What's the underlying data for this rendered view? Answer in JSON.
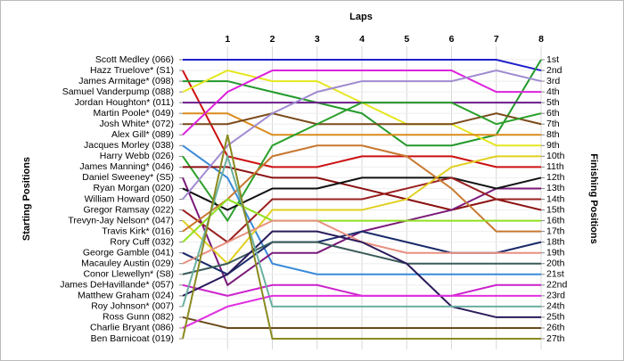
{
  "chart_data": {
    "type": "line",
    "title": "Laps",
    "y_label_left": "Starting Positions",
    "y_label_right": "Finishing Positions",
    "x": [
      0,
      1,
      2,
      3,
      4,
      5,
      6,
      7,
      8
    ],
    "xlim": [
      0,
      8
    ],
    "xticks": [
      1,
      2,
      3,
      4,
      5,
      6,
      7,
      8
    ],
    "ylim": [
      1,
      27
    ],
    "y_reversed": true,
    "grid": true,
    "finish_labels": [
      "1st",
      "2nd",
      "3rd",
      "4th",
      "5th",
      "6th",
      "7th",
      "8th",
      "9th",
      "10th",
      "11th",
      "12th",
      "13th",
      "14th",
      "15th",
      "16th",
      "17th",
      "18th",
      "19th",
      "20th",
      "21st",
      "22nd",
      "23rd",
      "24th",
      "25th",
      "26th",
      "27th"
    ],
    "series": [
      {
        "name": "Scott Medley (066)",
        "color": "#1f1fcc",
        "values": [
          1,
          1,
          1,
          1,
          1,
          1,
          1,
          1,
          2
        ]
      },
      {
        "name": "Hazz Truelove* (S1)",
        "color": "#cc1111",
        "values": [
          2,
          10,
          11,
          11,
          10,
          10,
          10,
          11,
          11
        ]
      },
      {
        "name": "James Armitage* (098)",
        "color": "#22992a",
        "values": [
          3,
          3,
          4,
          5,
          6,
          9,
          9,
          8,
          1
        ]
      },
      {
        "name": "Samuel Vanderpump (088)",
        "color": "#e6e620",
        "values": [
          4,
          2,
          3,
          3,
          5,
          7,
          7,
          9,
          9
        ]
      },
      {
        "name": "Jordan Houghton* (011)",
        "color": "#6a1b8a",
        "values": [
          5,
          5,
          5,
          5,
          5,
          5,
          5,
          5,
          5
        ]
      },
      {
        "name": "Martin Poole* (049)",
        "color": "#d98c1a",
        "values": [
          6,
          6,
          8,
          8,
          8,
          8,
          8,
          8,
          8
        ]
      },
      {
        "name": "Josh White* (072)",
        "color": "#7a4a1a",
        "values": [
          7,
          7,
          6,
          7,
          7,
          7,
          7,
          6,
          7
        ]
      },
      {
        "name": "Alex Gill* (089)",
        "color": "#dd22dd",
        "values": [
          8,
          4,
          2,
          2,
          2,
          2,
          2,
          4,
          4
        ]
      },
      {
        "name": "Jacques Morley (038)",
        "color": "#3a8ad8",
        "values": [
          9,
          12,
          20,
          21,
          21,
          21,
          21,
          21,
          21
        ]
      },
      {
        "name": "Harry Webb (026)",
        "color": "#2aa02a",
        "values": [
          10,
          16,
          9,
          7,
          5,
          5,
          5,
          7,
          6
        ]
      },
      {
        "name": "James Manning* (046)",
        "color": "#8b1010",
        "values": [
          11,
          11,
          12,
          12,
          13,
          14,
          15,
          14,
          15
        ]
      },
      {
        "name": "Daniel Sweeney* (S5)",
        "color": "#7a1a7a",
        "values": [
          12,
          22,
          19,
          19,
          17,
          16,
          15,
          13,
          13
        ]
      },
      {
        "name": "Ryan Morgan (020)",
        "color": "#111111",
        "values": [
          13,
          15,
          13,
          13,
          12,
          12,
          12,
          13,
          12
        ]
      },
      {
        "name": "William Howard (050)",
        "color": "#a08ad0",
        "values": [
          14,
          9,
          6,
          4,
          3,
          3,
          3,
          2,
          3
        ]
      },
      {
        "name": "Gregor Ramsay (022)",
        "color": "#9a2020",
        "values": [
          15,
          18,
          14,
          14,
          14,
          13,
          12,
          14,
          14
        ]
      },
      {
        "name": "Trevyn-Jay Nelson* (047)",
        "color": "#e0d020",
        "values": [
          16,
          20,
          15,
          15,
          15,
          14,
          11,
          10,
          10
        ]
      },
      {
        "name": "Travis Kirk* (016)",
        "color": "#c87830",
        "values": [
          17,
          14,
          10,
          9,
          9,
          10,
          13,
          17,
          17
        ]
      },
      {
        "name": "Rory Cuff (032)",
        "color": "#90e020",
        "values": [
          18,
          14,
          16,
          16,
          16,
          16,
          16,
          16,
          16
        ]
      },
      {
        "name": "George Gamble (041)",
        "color": "#1a2a6a",
        "values": [
          19,
          21,
          18,
          18,
          17,
          18,
          19,
          19,
          18
        ]
      },
      {
        "name": "Macauley Austin (029)",
        "color": "#e89080",
        "values": [
          20,
          18,
          16,
          16,
          18,
          19,
          19,
          19,
          19
        ]
      },
      {
        "name": "Conor Llewellyn* (S8)",
        "color": "#3a5a5a",
        "values": [
          21,
          20,
          18,
          18,
          19,
          20,
          20,
          20,
          20
        ]
      },
      {
        "name": "James DeHavillande* (057)",
        "color": "#cc22cc",
        "values": [
          22,
          23,
          22,
          22,
          23,
          23,
          23,
          22,
          22
        ]
      },
      {
        "name": "Matthew Graham (024)",
        "color": "#2a1a5a",
        "values": [
          23,
          21,
          17,
          17,
          18,
          20,
          24,
          25,
          25
        ]
      },
      {
        "name": "Roy Johnson* (007)",
        "color": "#6ab0a0",
        "values": [
          24,
          10,
          24,
          24,
          24,
          24,
          24,
          24,
          24
        ]
      },
      {
        "name": "Ross Gunn (082)",
        "color": "#6a4a1a",
        "values": [
          25,
          26,
          26,
          26,
          26,
          26,
          26,
          26,
          26
        ]
      },
      {
        "name": "Charlie Bryant (086)",
        "color": "#e030e0",
        "values": [
          26,
          24,
          23,
          23,
          23,
          23,
          23,
          23,
          23
        ]
      },
      {
        "name": "Ben Barnicoat (019)",
        "color": "#8a8a20",
        "values": [
          27,
          8,
          27,
          27,
          27,
          27,
          27,
          27,
          27
        ]
      }
    ]
  }
}
